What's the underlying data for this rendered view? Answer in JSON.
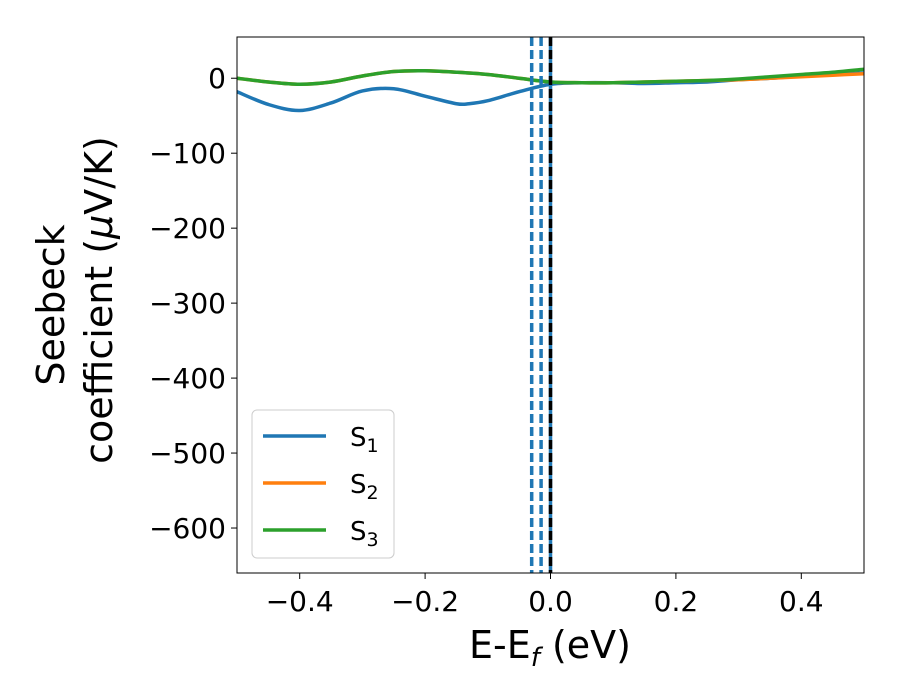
{
  "chart_data": {
    "type": "line",
    "xlabel": {
      "main": "E-E",
      "sub": "f",
      "unit": " (eV)"
    },
    "ylabel": {
      "line1": "Seebeck",
      "line2_prefix": "coefficient  (",
      "mu": "μ",
      "line2_suffix": "V/K)"
    },
    "xlim": [
      -0.5,
      0.5
    ],
    "ylim": [
      -660,
      55
    ],
    "xticks": [
      -0.4,
      -0.2,
      0.0,
      0.2,
      0.4
    ],
    "xtick_labels": [
      "−0.4",
      "−0.2",
      "0.0",
      "0.2",
      "0.4"
    ],
    "yticks": [
      0,
      -100,
      -200,
      -300,
      -400,
      -500,
      -600
    ],
    "ytick_labels": [
      "0",
      "−100",
      "−200",
      "−300",
      "−400",
      "−500",
      "−600"
    ],
    "grid": false,
    "legend_position": "lower-left",
    "series": [
      {
        "name": "S",
        "sub": "1",
        "color": "#1f77b4",
        "x": [
          -0.5,
          -0.45,
          -0.4,
          -0.35,
          -0.3,
          -0.25,
          -0.2,
          -0.15,
          -0.13,
          -0.1,
          -0.05,
          0.0,
          0.05,
          0.1,
          0.15,
          0.2,
          0.25,
          0.3,
          0.35,
          0.4,
          0.45,
          0.5
        ],
        "y": [
          -18,
          -35,
          -43,
          -33,
          -17,
          -14,
          -24,
          -34,
          -34,
          -30,
          -18,
          -8,
          -6,
          -6,
          -7,
          -6,
          -5,
          -2,
          0,
          3,
          5,
          7
        ]
      },
      {
        "name": "S",
        "sub": "2",
        "color": "#ff7f0e",
        "x": [
          -0.5,
          -0.45,
          -0.4,
          -0.35,
          -0.3,
          -0.25,
          -0.2,
          -0.15,
          -0.1,
          -0.05,
          0.0,
          0.05,
          0.1,
          0.15,
          0.2,
          0.25,
          0.3,
          0.35,
          0.4,
          0.45,
          0.5
        ],
        "y": [
          0,
          -5,
          -8,
          -5,
          3,
          9,
          10,
          8,
          5,
          0,
          -5,
          -6,
          -6,
          -5,
          -4,
          -3,
          -2,
          0,
          2,
          4,
          6
        ]
      },
      {
        "name": "S",
        "sub": "3",
        "color": "#2ca02c",
        "x": [
          -0.5,
          -0.45,
          -0.4,
          -0.35,
          -0.3,
          -0.25,
          -0.2,
          -0.15,
          -0.1,
          -0.05,
          0.0,
          0.05,
          0.1,
          0.15,
          0.2,
          0.25,
          0.3,
          0.35,
          0.4,
          0.45,
          0.5
        ],
        "y": [
          0,
          -5,
          -8,
          -5,
          3,
          9,
          10,
          8,
          5,
          0,
          -5,
          -6,
          -6,
          -5,
          -4,
          -3,
          -1,
          2,
          5,
          8,
          12
        ]
      }
    ],
    "vlines": [
      {
        "x": -0.03,
        "color": "#1f77b4",
        "style": "dashed"
      },
      {
        "x": -0.015,
        "color": "#1f77b4",
        "style": "dashed"
      },
      {
        "x": 0.0,
        "color": "#1f77b4",
        "style": "solid"
      },
      {
        "x": 0.0,
        "color": "#000000",
        "style": "dashed"
      }
    ]
  }
}
